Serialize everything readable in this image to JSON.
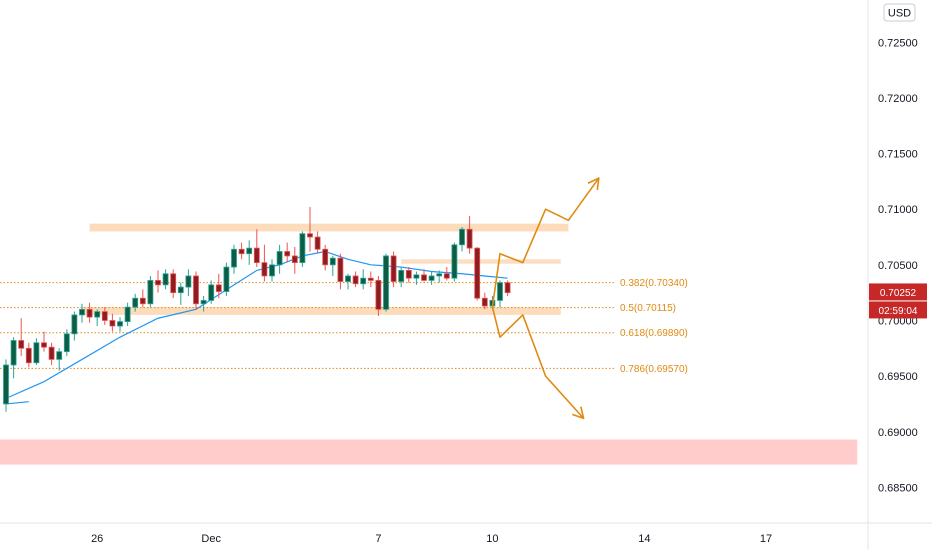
{
  "chart_data": {
    "type": "candlestick",
    "currency": "USD",
    "ylim": [
      0.6818,
      0.7288
    ],
    "x_ticks": [
      {
        "index": 12,
        "label": "26"
      },
      {
        "index": 27,
        "label": "Dec"
      },
      {
        "index": 49,
        "label": "7"
      },
      {
        "index": 64,
        "label": "10"
      },
      {
        "index": 84,
        "label": "14"
      },
      {
        "index": 100,
        "label": "17"
      }
    ],
    "y_ticks": [
      "0.72500",
      "0.72000",
      "0.71500",
      "0.71000",
      "0.70500",
      "0.70000",
      "0.69500",
      "0.69000",
      "0.68500"
    ],
    "candles": [
      [
        0.6925,
        0.6965,
        0.6918,
        0.696
      ],
      [
        0.696,
        0.6985,
        0.6948,
        0.6982
      ],
      [
        0.6982,
        0.7002,
        0.6968,
        0.6975
      ],
      [
        0.6975,
        0.698,
        0.6958,
        0.6962
      ],
      [
        0.6962,
        0.6984,
        0.696,
        0.698
      ],
      [
        0.698,
        0.699,
        0.6972,
        0.6976
      ],
      [
        0.6976,
        0.698,
        0.696,
        0.6965
      ],
      [
        0.6965,
        0.6975,
        0.6955,
        0.6972
      ],
      [
        0.6972,
        0.6992,
        0.6968,
        0.6988
      ],
      [
        0.6988,
        0.7008,
        0.6982,
        0.7005
      ],
      [
        0.7005,
        0.7015,
        0.6998,
        0.701
      ],
      [
        0.701,
        0.7016,
        0.6998,
        0.7003
      ],
      [
        0.7003,
        0.701,
        0.6995,
        0.7008
      ],
      [
        0.7008,
        0.7012,
        0.6996,
        0.7
      ],
      [
        0.7,
        0.7006,
        0.699,
        0.6995
      ],
      [
        0.6995,
        0.7003,
        0.699,
        0.6999
      ],
      [
        0.6999,
        0.7016,
        0.6995,
        0.7012
      ],
      [
        0.7012,
        0.7024,
        0.7008,
        0.702
      ],
      [
        0.702,
        0.7028,
        0.7012,
        0.7015
      ],
      [
        0.7015,
        0.704,
        0.7012,
        0.7036
      ],
      [
        0.7036,
        0.7045,
        0.7025,
        0.7032
      ],
      [
        0.7032,
        0.7046,
        0.7028,
        0.7042
      ],
      [
        0.7042,
        0.7046,
        0.702,
        0.7025
      ],
      [
        0.7025,
        0.7034,
        0.7014,
        0.703
      ],
      [
        0.703,
        0.7046,
        0.7022,
        0.704
      ],
      [
        0.704,
        0.7044,
        0.701,
        0.7015
      ],
      [
        0.7015,
        0.7022,
        0.7008,
        0.7018
      ],
      [
        0.7018,
        0.7036,
        0.7015,
        0.7032
      ],
      [
        0.7032,
        0.7042,
        0.702,
        0.7026
      ],
      [
        0.7026,
        0.7052,
        0.7022,
        0.7048
      ],
      [
        0.7048,
        0.7068,
        0.7042,
        0.7064
      ],
      [
        0.7064,
        0.707,
        0.7055,
        0.706
      ],
      [
        0.706,
        0.7072,
        0.705,
        0.7065
      ],
      [
        0.7065,
        0.7082,
        0.7048,
        0.7052
      ],
      [
        0.7052,
        0.7068,
        0.7035,
        0.704
      ],
      [
        0.704,
        0.7055,
        0.7035,
        0.705
      ],
      [
        0.705,
        0.7068,
        0.7042,
        0.7062
      ],
      [
        0.7062,
        0.707,
        0.7052,
        0.7058
      ],
      [
        0.7058,
        0.7066,
        0.7042,
        0.7052
      ],
      [
        0.7052,
        0.708,
        0.7048,
        0.7078
      ],
      [
        0.7078,
        0.7102,
        0.7062,
        0.7075
      ],
      [
        0.7075,
        0.708,
        0.706,
        0.7064
      ],
      [
        0.7064,
        0.7068,
        0.7045,
        0.705
      ],
      [
        0.705,
        0.7058,
        0.704,
        0.7056
      ],
      [
        0.7056,
        0.706,
        0.7028,
        0.7035
      ],
      [
        0.7035,
        0.7042,
        0.7028,
        0.704
      ],
      [
        0.704,
        0.7044,
        0.703,
        0.7033
      ],
      [
        0.7033,
        0.7046,
        0.7028,
        0.7038
      ],
      [
        0.7038,
        0.7044,
        0.703,
        0.7036
      ],
      [
        0.7036,
        0.704,
        0.7004,
        0.701
      ],
      [
        0.701,
        0.706,
        0.7008,
        0.7058
      ],
      [
        0.7058,
        0.7062,
        0.703,
        0.7035
      ],
      [
        0.7035,
        0.7048,
        0.703,
        0.7045
      ],
      [
        0.7045,
        0.7048,
        0.7034,
        0.7038
      ],
      [
        0.7038,
        0.7044,
        0.7032,
        0.7041
      ],
      [
        0.7041,
        0.7046,
        0.7035,
        0.7036
      ],
      [
        0.7036,
        0.7044,
        0.7032,
        0.704
      ],
      [
        0.704,
        0.7045,
        0.7034,
        0.7042
      ],
      [
        0.7042,
        0.7048,
        0.7036,
        0.7038
      ],
      [
        0.7038,
        0.707,
        0.7035,
        0.7068
      ],
      [
        0.7068,
        0.7084,
        0.7062,
        0.7082
      ],
      [
        0.7082,
        0.7094,
        0.706,
        0.7065
      ],
      [
        0.7065,
        0.7066,
        0.7018,
        0.702
      ],
      [
        0.702,
        0.7025,
        0.701,
        0.7013
      ],
      [
        0.7013,
        0.7022,
        0.701,
        0.7018
      ],
      [
        0.7018,
        0.7036,
        0.7012,
        0.7034
      ],
      [
        0.7034,
        0.7036,
        0.7022,
        0.7025
      ]
    ],
    "ma_series": {
      "name": "MA",
      "color": "#2196f3",
      "points": [
        [
          0,
          0.693
        ],
        [
          5,
          0.6945
        ],
        [
          10,
          0.6965
        ],
        [
          15,
          0.6985
        ],
        [
          20,
          0.7002
        ],
        [
          25,
          0.701
        ],
        [
          30,
          0.7032
        ],
        [
          33,
          0.7045
        ],
        [
          36,
          0.705
        ],
        [
          39,
          0.7058
        ],
        [
          42,
          0.7062
        ],
        [
          45,
          0.7055
        ],
        [
          48,
          0.705
        ],
        [
          52,
          0.7048
        ],
        [
          56,
          0.7044
        ],
        [
          60,
          0.7042
        ],
        [
          63,
          0.704
        ],
        [
          66,
          0.7038
        ]
      ]
    },
    "stub_line": [
      [
        0,
        0.6925
      ],
      [
        3,
        0.6927
      ]
    ],
    "zones": [
      {
        "from": 0.708,
        "to": 0.7087,
        "x_start": 11,
        "x_end": 74,
        "color": "#f9b977",
        "opacity": 0.5
      },
      {
        "from": 0.7051,
        "to": 0.7055,
        "x_start": 52,
        "x_end": 73,
        "color": "#f9b977",
        "opacity": 0.45
      },
      {
        "from": 0.7005,
        "to": 0.7012,
        "x_start": 10,
        "x_end": 73,
        "color": "#f9b977",
        "opacity": 0.5
      },
      {
        "from": 0.68705,
        "to": 0.6893,
        "x_start": -1,
        "x_end": 112,
        "color": "#ff6b6b",
        "opacity": 0.35
      }
    ],
    "fib_levels": [
      {
        "label": "0.382(0.70340)",
        "value": 0.7034
      },
      {
        "label": "0.5(0.70115)",
        "value": 0.70115
      },
      {
        "label": "0.618(0.69890)",
        "value": 0.6989
      },
      {
        "label": "0.786(0.69570)",
        "value": 0.6957
      }
    ],
    "arrows": [
      {
        "color": "#e08a13",
        "points": [
          [
            64,
            0.7012
          ],
          [
            65,
            0.706
          ],
          [
            68,
            0.7052
          ],
          [
            71,
            0.71
          ],
          [
            74,
            0.709
          ],
          [
            78,
            0.7128
          ]
        ]
      },
      {
        "color": "#e08a13",
        "points": [
          [
            64,
            0.7012
          ],
          [
            65,
            0.6985
          ],
          [
            68,
            0.7005
          ],
          [
            71,
            0.695
          ],
          [
            76,
            0.6912
          ]
        ]
      }
    ],
    "current_price": {
      "value": 0.70252,
      "label": "0.70252",
      "countdown": "02:59:04",
      "color": "#c62828"
    },
    "colors": {
      "up": "#26a69a",
      "down": "#ef5350",
      "up_body": "#0f5c45",
      "down_body": "#8b1e23",
      "fib": "#e08a13",
      "axis_text": "#131722"
    }
  }
}
